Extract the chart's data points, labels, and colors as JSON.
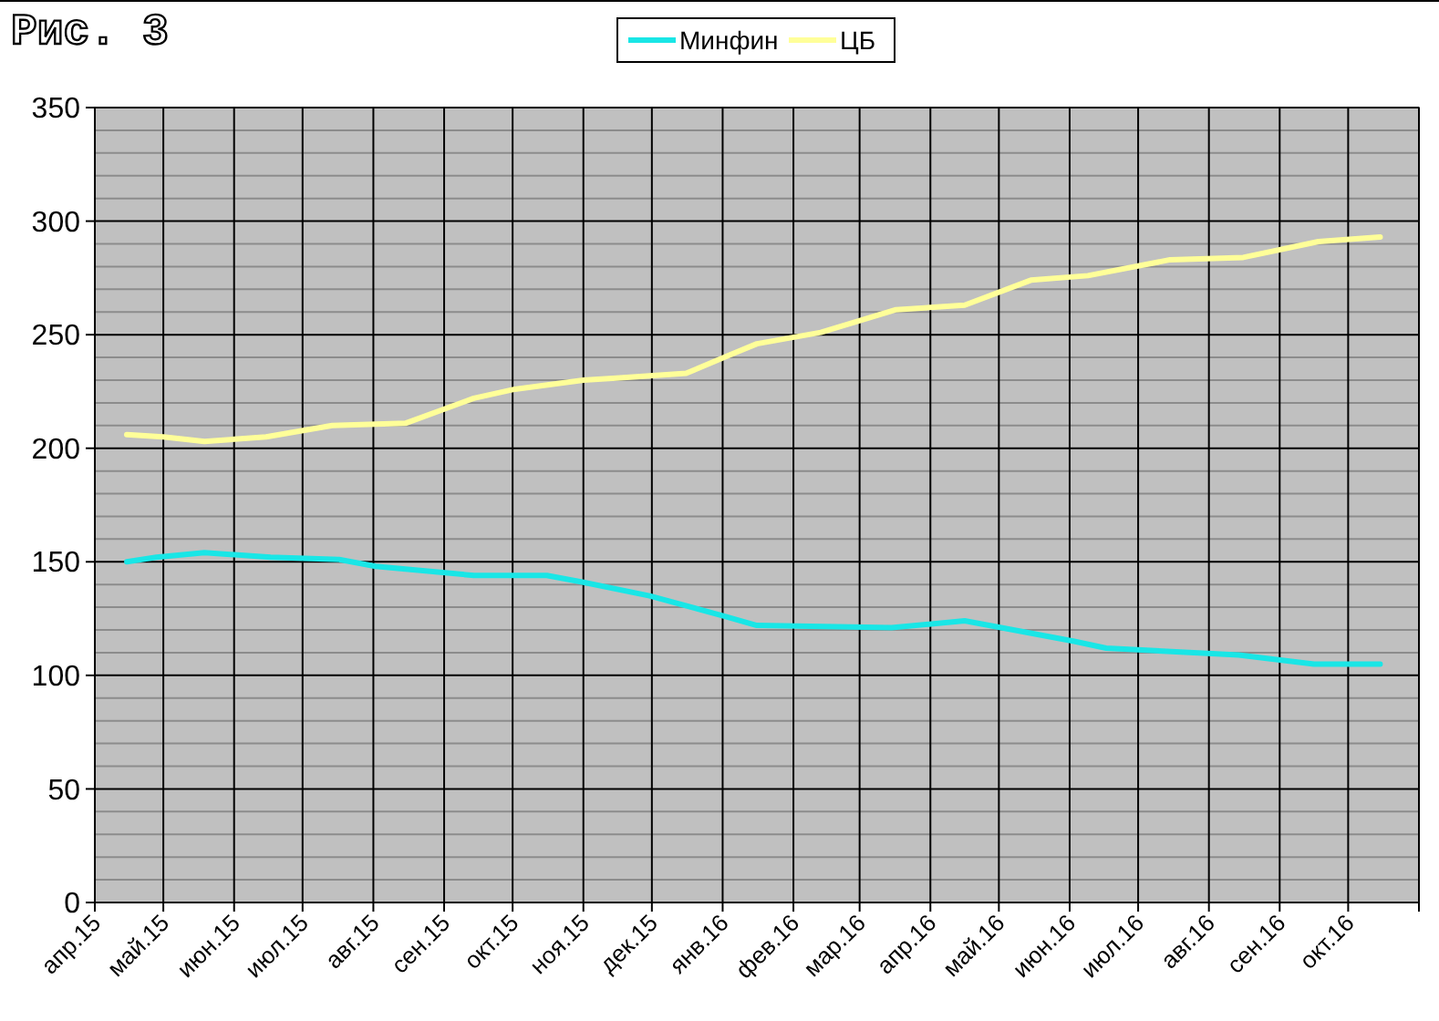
{
  "chart_data": {
    "type": "line",
    "title": "Рис. 3",
    "legend": "top",
    "grid": true,
    "marker": "none",
    "line_style": "solid",
    "xlim": [
      "2015-04",
      "2016-11"
    ],
    "xticks": [
      {
        "value": "2015-04",
        "label": "апр.15"
      },
      {
        "value": "2015-05",
        "label": "май.15"
      },
      {
        "value": "2015-06",
        "label": "июн.15"
      },
      {
        "value": "2015-07",
        "label": "июл.15"
      },
      {
        "value": "2015-08",
        "label": "авг.15"
      },
      {
        "value": "2015-09",
        "label": "сен.15"
      },
      {
        "value": "2015-10",
        "label": "окт.15"
      },
      {
        "value": "2015-11",
        "label": "ноя.15"
      },
      {
        "value": "2015-12",
        "label": "дек.15"
      },
      {
        "value": "2016-01",
        "label": "янв.16"
      },
      {
        "value": "2016-02",
        "label": "фев.16"
      },
      {
        "value": "2016-03",
        "label": "мар.16"
      },
      {
        "value": "2016-04",
        "label": "апр.16"
      },
      {
        "value": "2016-05",
        "label": "май.16"
      },
      {
        "value": "2016-06",
        "label": "июн.16"
      },
      {
        "value": "2016-07",
        "label": "июл.16"
      },
      {
        "value": "2016-08",
        "label": "авг.16"
      },
      {
        "value": "2016-09",
        "label": "сен.16"
      },
      {
        "value": "2016-10",
        "label": "окт.16"
      },
      {
        "value": "2016-11",
        "label": null
      }
    ],
    "ylim": [
      0,
      350
    ],
    "yticks": [
      0,
      {
        "value": 10,
        "label": null
      },
      {
        "value": 20,
        "label": null
      },
      {
        "value": 30,
        "label": null
      },
      {
        "value": 40,
        "label": null
      },
      50,
      {
        "value": 60,
        "label": null
      },
      {
        "value": 70,
        "label": null
      },
      {
        "value": 80,
        "label": null
      },
      {
        "value": 90,
        "label": null
      },
      100,
      {
        "value": 110,
        "label": null
      },
      {
        "value": 120,
        "label": null
      },
      {
        "value": 130,
        "label": null
      },
      {
        "value": 140,
        "label": null
      },
      150,
      {
        "value": 160,
        "label": null
      },
      {
        "value": 170,
        "label": null
      },
      {
        "value": 180,
        "label": null
      },
      {
        "value": 190,
        "label": null
      },
      200,
      {
        "value": 210,
        "label": null
      },
      {
        "value": 220,
        "label": null
      },
      {
        "value": 230,
        "label": null
      },
      {
        "value": 240,
        "label": null
      },
      250,
      {
        "value": 260,
        "label": null
      },
      {
        "value": 270,
        "label": null
      },
      {
        "value": 280,
        "label": null
      },
      {
        "value": 290,
        "label": null
      },
      300,
      {
        "value": 310,
        "label": null
      },
      {
        "value": 320,
        "label": null
      },
      {
        "value": 330,
        "label": null
      },
      {
        "value": 340,
        "label": null
      },
      350
    ],
    "series": [
      {
        "name": "Минфин",
        "color": "#19e6e6",
        "x": [
          "2015-04-15",
          "2015-04-28",
          "2015-05-19",
          "2015-06-17",
          "2015-07-17",
          "2015-08-02",
          "2015-09-14",
          "2015-10-16",
          "2015-11-01",
          "2015-11-30",
          "2016-01-02",
          "2016-01-16",
          "2016-03-15",
          "2016-04-16",
          "2016-06-03",
          "2016-06-17",
          "2016-08-14",
          "2016-09-16",
          "2016-10-15"
        ],
        "values": [
          150,
          152,
          154,
          152,
          151,
          148,
          144,
          144,
          141,
          135,
          126,
          122,
          121,
          124,
          115,
          112,
          109,
          105,
          105
        ]
      },
      {
        "name": "ЦБ",
        "color": "#ffff99",
        "x": [
          "2015-04-15",
          "2015-05-01",
          "2015-05-19",
          "2015-06-15",
          "2015-07-14",
          "2015-08-15",
          "2015-09-14",
          "2015-10-02",
          "2015-11-01",
          "2015-11-17",
          "2015-12-16",
          "2016-01-04",
          "2016-01-16",
          "2016-02-13",
          "2016-03-17",
          "2016-04-16",
          "2016-05-15",
          "2016-06-09",
          "2016-07-15",
          "2016-08-16",
          "2016-09-18",
          "2016-10-15"
        ],
        "values": [
          206,
          205,
          203,
          205,
          210,
          211,
          222,
          226,
          230,
          231,
          233,
          241,
          246,
          251,
          261,
          263,
          274,
          276,
          283,
          284,
          291,
          293
        ]
      }
    ]
  }
}
